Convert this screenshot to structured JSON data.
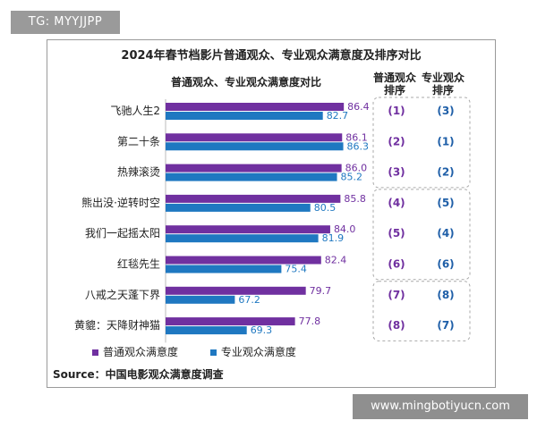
{
  "top_badge": "TG: MYYJJPP",
  "watermark": "www.mingbotiyucn.com",
  "colors": {
    "audience": "#7030a0",
    "professional": "#1f78c1",
    "rank_text": "#7030a0",
    "rank_text_pro": "#1f5fa8"
  },
  "chart_data": {
    "type": "bar",
    "orientation": "horizontal",
    "title": "2024年春节档影片普通观众、专业观众满意度及排序对比",
    "subtitle": "普通观众、专业观众满意度对比",
    "categories": [
      "飞驰人生2",
      "第二十条",
      "热辣滚烫",
      "熊出没·逆转时空",
      "我们一起摇太阳",
      "红毯先生",
      "八戒之天蓬下界",
      "黄貔：天降财神猫"
    ],
    "series": [
      {
        "name": "普通观众满意度",
        "values": [
          86.4,
          86.1,
          86.0,
          85.8,
          84.0,
          82.4,
          79.7,
          77.8
        ]
      },
      {
        "name": "专业观众满意度",
        "values": [
          82.7,
          86.3,
          85.2,
          80.5,
          81.9,
          75.4,
          67.2,
          69.3
        ]
      }
    ],
    "xlim": [
      55,
      90
    ],
    "rank_headers": [
      "普通观众\n排序",
      "专业观众\n排序"
    ],
    "ranks_audience": [
      "(1)",
      "(2)",
      "(3)",
      "(4)",
      "(5)",
      "(6)",
      "(7)",
      "(8)"
    ],
    "ranks_professional": [
      "(3)",
      "(1)",
      "(2)",
      "(5)",
      "(4)",
      "(6)",
      "(8)",
      "(7)"
    ],
    "rank_groups": [
      [
        0,
        2
      ],
      [
        3,
        5
      ],
      [
        6,
        7
      ]
    ],
    "legend_position": "bottom",
    "source": "Source：中国电影观众满意度调查"
  }
}
